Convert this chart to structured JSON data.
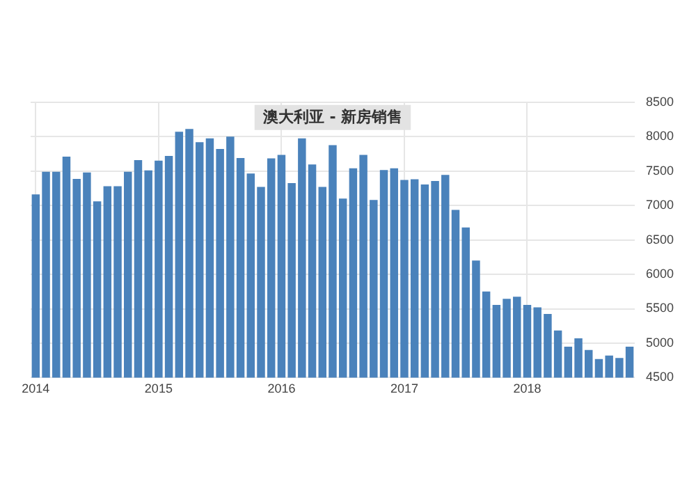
{
  "chart_data": {
    "type": "bar",
    "title": "澳大利亚 - 新房销售",
    "categories": [
      "2014",
      null,
      null,
      null,
      null,
      null,
      null,
      null,
      null,
      null,
      null,
      null,
      "2015",
      null,
      null,
      null,
      null,
      null,
      null,
      null,
      null,
      null,
      null,
      null,
      "2016",
      null,
      null,
      null,
      null,
      null,
      null,
      null,
      null,
      null,
      null,
      null,
      "2017",
      null,
      null,
      null,
      null,
      null,
      null,
      null,
      null,
      null,
      null,
      null,
      "2018",
      null,
      null,
      null,
      null,
      null,
      null,
      null,
      null,
      null,
      null
    ],
    "values": [
      7160,
      7490,
      7490,
      7710,
      7385,
      7480,
      7060,
      7280,
      7280,
      7490,
      7660,
      7510,
      7650,
      7720,
      8070,
      8110,
      7920,
      7975,
      7820,
      8000,
      7690,
      7465,
      7270,
      7685,
      7735,
      7325,
      7975,
      7595,
      7270,
      7875,
      7100,
      7540,
      7735,
      7080,
      7515,
      7540,
      7370,
      7380,
      7305,
      7355,
      7445,
      6935,
      6680,
      6200,
      5750,
      5555,
      5645,
      5675,
      5555,
      5520,
      5425,
      5185,
      4950,
      5070,
      4900,
      4770,
      4820,
      4785,
      4950
    ],
    "color": "#4a82bb",
    "ylim": [
      4500,
      8500
    ],
    "yticks": [
      4500,
      5000,
      5500,
      6000,
      6500,
      7000,
      7500,
      8000,
      8500
    ],
    "grid": true
  }
}
